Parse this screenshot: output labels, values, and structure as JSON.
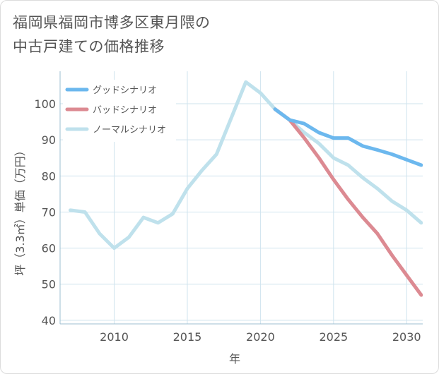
{
  "title": {
    "line1": "福岡県福岡市博多区東月隈の",
    "line2": "中古戸建ての価格推移"
  },
  "chart_data": {
    "type": "line",
    "xlabel": "年",
    "ylabel": "坪（3.3㎡）単価（万円）",
    "xlim": [
      2006.3,
      2031.1
    ],
    "ylim": [
      39,
      109
    ],
    "x_ticks": [
      2010,
      2015,
      2020,
      2025,
      2030
    ],
    "y_ticks": [
      40,
      50,
      60,
      70,
      80,
      90,
      100
    ],
    "grid": true,
    "legend_position": "top-left",
    "series": [
      {
        "name": "グッドシナリオ",
        "color": "#6cb8ee",
        "x": [
          2021,
          2022,
          2023,
          2024,
          2025,
          2026,
          2027,
          2028,
          2029,
          2030,
          2031
        ],
        "y": [
          98.5,
          95.5,
          94.5,
          92,
          90.5,
          90.5,
          88.3,
          87.2,
          86,
          84.5,
          83
        ]
      },
      {
        "name": "バッドシナリオ",
        "color": "#dc8a92",
        "x": [
          2021,
          2022,
          2023,
          2024,
          2025,
          2026,
          2027,
          2028,
          2029,
          2030,
          2031
        ],
        "y": [
          98.5,
          95.5,
          90.5,
          85,
          79,
          73.5,
          68.5,
          64,
          58,
          52.5,
          47
        ]
      },
      {
        "name": "ノーマルシナリオ",
        "color": "#bfe1ec",
        "x": [
          2007,
          2008,
          2009,
          2010,
          2011,
          2012,
          2013,
          2014,
          2015,
          2016,
          2017,
          2018,
          2019,
          2020,
          2021,
          2022,
          2023,
          2024,
          2025,
          2026,
          2027,
          2028,
          2029,
          2030,
          2031
        ],
        "y": [
          70.5,
          70,
          64,
          60,
          63,
          68.5,
          67,
          69.5,
          76.5,
          81.5,
          86,
          96,
          106,
          103,
          98.5,
          95.5,
          92,
          89,
          85,
          83,
          79.5,
          76.5,
          73,
          70.5,
          67
        ]
      }
    ]
  }
}
